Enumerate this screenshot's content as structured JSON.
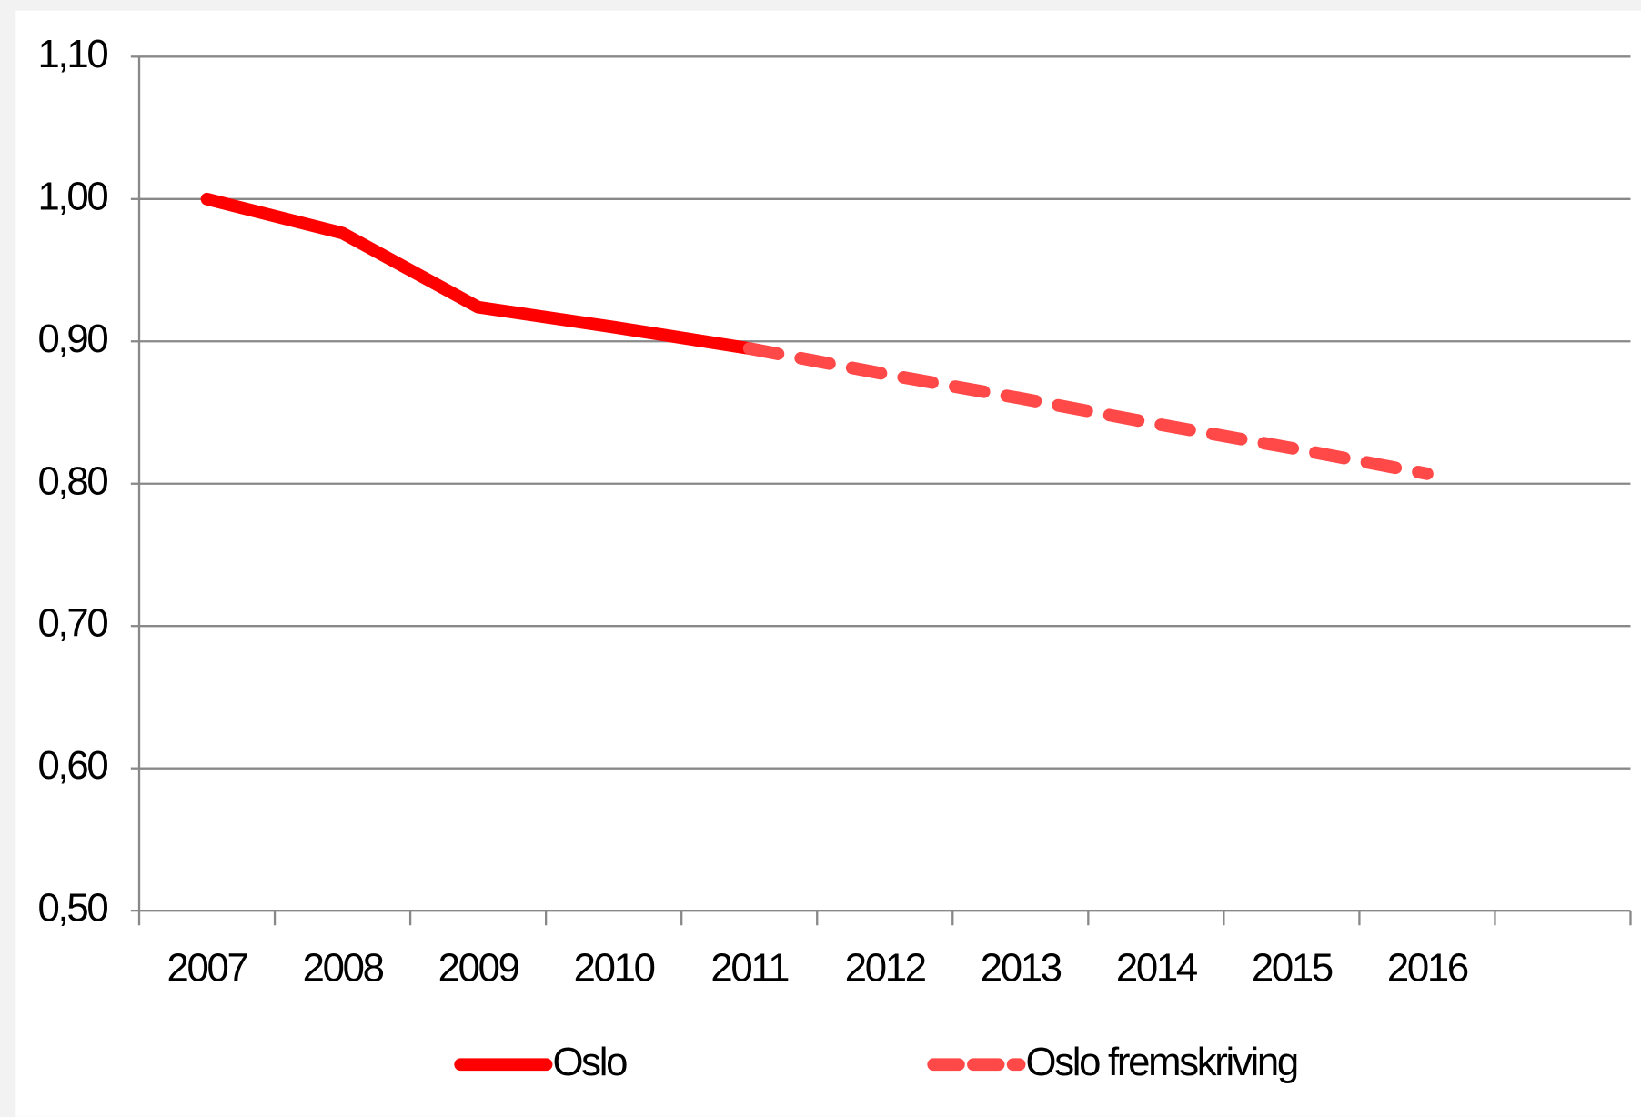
{
  "chart_data": {
    "type": "line",
    "categories": [
      "2007",
      "2008",
      "2009",
      "2010",
      "2011",
      "2012",
      "2013",
      "2014",
      "2015",
      "2016",
      null
    ],
    "series": [
      {
        "name": "Oslo",
        "color": "#ff0000",
        "dashed": false,
        "values": [
          1.0,
          0.976,
          0.924,
          0.91,
          0.895,
          null,
          null,
          null,
          null,
          null,
          null
        ]
      },
      {
        "name": "Oslo fremskriving",
        "color": "#ff4848",
        "dashed": true,
        "values": [
          null,
          null,
          null,
          null,
          0.895,
          0.877,
          0.86,
          0.842,
          0.825,
          0.807,
          null
        ]
      }
    ],
    "ylim": [
      0.5,
      1.1
    ],
    "yticks": [
      {
        "value": 0.5,
        "label": "0,50"
      },
      {
        "value": 0.6,
        "label": "0,60"
      },
      {
        "value": 0.7,
        "label": "0,70"
      },
      {
        "value": 0.8,
        "label": "0,80"
      },
      {
        "value": 0.9,
        "label": "0,90"
      },
      {
        "value": 1.0,
        "label": "1,00"
      },
      {
        "value": 1.1,
        "label": "1,10"
      }
    ],
    "grid": true,
    "legend": "bottom"
  }
}
